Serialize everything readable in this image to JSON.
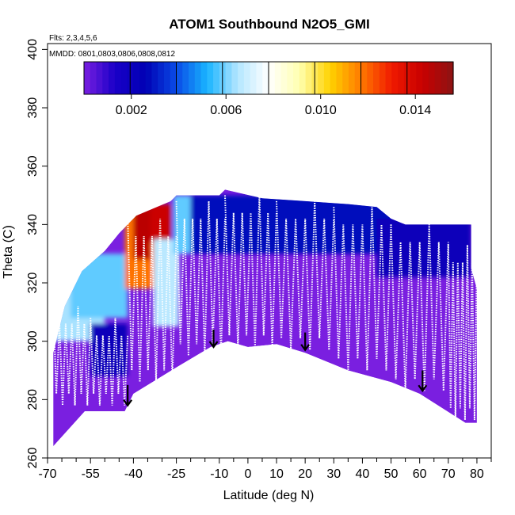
{
  "chart_data": {
    "type": "heatmap",
    "title": "ATOM1 Southbound N2O5_GMI",
    "annotations": {
      "flights": "Flts: 2,3,4,5,6",
      "dates": "MMDD: 0801,0803,0806,0808,0812"
    },
    "xlabel": "Latitude (deg N)",
    "ylabel": "Theta (C)",
    "xlim": [
      -70,
      85
    ],
    "ylim": [
      260,
      402
    ],
    "x_ticks": [
      -70,
      -55,
      -40,
      -25,
      -10,
      0,
      10,
      20,
      30,
      40,
      50,
      60,
      70,
      80
    ],
    "x_tick_labels": [
      "-70",
      "-55",
      "-40",
      "-25",
      "-10",
      "0",
      "10",
      "20",
      "30",
      "40",
      "50",
      "60",
      "70",
      "80"
    ],
    "x_minor_ticks": [
      -65,
      -60,
      -50,
      -45,
      -35,
      -30,
      -20,
      -15,
      -5,
      5,
      15,
      25,
      35,
      45,
      55,
      65,
      75,
      85
    ],
    "y_ticks": [
      260,
      280,
      300,
      320,
      340,
      360,
      380,
      400
    ],
    "y_tick_labels": [
      "260",
      "280",
      "300",
      "320",
      "340",
      "360",
      "380",
      "400"
    ],
    "colorbar": {
      "min": 0.0,
      "max": 0.0156,
      "ticks": [
        0.002,
        0.006,
        0.01,
        0.014
      ],
      "tick_labels": [
        "0.002",
        "0.006",
        "0.010",
        "0.014"
      ],
      "colors": [
        "#7a1fe0",
        "#1a00c8",
        "#0000b4",
        "#0a4be6",
        "#19b4ff",
        "#b4e6ff",
        "#ffffff",
        "#ffffb0",
        "#ffd200",
        "#ff7a00",
        "#f01a00",
        "#c80000",
        "#8c1414"
      ]
    },
    "grid": false,
    "background_value": 0.0,
    "floor_boundary": [
      [
        -68,
        264
      ],
      [
        -57,
        276
      ],
      [
        -43,
        276
      ],
      [
        -40,
        282
      ],
      [
        -25,
        291
      ],
      [
        -13,
        298
      ],
      [
        -7,
        300
      ],
      [
        0,
        298
      ],
      [
        10,
        299
      ],
      [
        20,
        296
      ],
      [
        35,
        290
      ],
      [
        50,
        286
      ],
      [
        60,
        282
      ],
      [
        76,
        272
      ],
      [
        80,
        272
      ]
    ],
    "top_boundary": [
      [
        -68,
        296
      ],
      [
        -64,
        312
      ],
      [
        -58,
        324
      ],
      [
        -50,
        331
      ],
      [
        -45,
        337
      ],
      [
        -39,
        343
      ],
      [
        -27,
        348
      ],
      [
        -25,
        350
      ],
      [
        -10,
        350
      ],
      [
        -8,
        352
      ],
      [
        5,
        349
      ],
      [
        20,
        348
      ],
      [
        35,
        347
      ],
      [
        45,
        346
      ],
      [
        50,
        342
      ],
      [
        55,
        340
      ],
      [
        78,
        340
      ],
      [
        78,
        325
      ],
      [
        80,
        318
      ],
      [
        80,
        288
      ]
    ],
    "concentration_regions": [
      {
        "lat_min": -68,
        "lat_max": -50,
        "theta_min": 300,
        "theta_max": 318,
        "value": 0.0064
      },
      {
        "lat_min": -62,
        "lat_max": -42,
        "theta_min": 308,
        "theta_max": 330,
        "value": 0.0058
      },
      {
        "lat_min": -55,
        "lat_max": -42,
        "theta_min": 288,
        "theta_max": 306,
        "value": 0.0022
      },
      {
        "lat_min": -43,
        "lat_max": -29,
        "theta_min": 318,
        "theta_max": 344,
        "value": 0.0118
      },
      {
        "lat_min": -40,
        "lat_max": -34,
        "theta_min": 328,
        "theta_max": 346,
        "value": 0.0146
      },
      {
        "lat_min": -34,
        "lat_max": -27,
        "theta_min": 334,
        "theta_max": 347,
        "value": 0.0142
      },
      {
        "lat_min": -33,
        "lat_max": -24,
        "theta_min": 305,
        "theta_max": 335,
        "value": 0.0066
      },
      {
        "lat_min": -26,
        "lat_max": -20,
        "theta_min": 330,
        "theta_max": 350,
        "value": 0.0058
      },
      {
        "lat_min": -20,
        "lat_max": 78,
        "theta_min": 330,
        "theta_max": 350,
        "value": 0.0028
      },
      {
        "lat_min": 45,
        "lat_max": 78,
        "theta_min": 322,
        "theta_max": 342,
        "value": 0.0022
      }
    ],
    "flight_tracks": [
      {
        "lat_start": -68,
        "lat_end": -55,
        "theta_bottom": 278,
        "theta_top": 312
      },
      {
        "lat_start": -55,
        "lat_end": -42,
        "theta_bottom": 278,
        "theta_top": 308
      },
      {
        "lat_start": -42,
        "lat_end": -25,
        "theta_bottom": 286,
        "theta_top": 342
      },
      {
        "lat_start": -25,
        "lat_end": -8,
        "theta_bottom": 295,
        "theta_top": 348
      },
      {
        "lat_start": -8,
        "lat_end": 10,
        "theta_bottom": 298,
        "theta_top": 350
      },
      {
        "lat_start": 10,
        "lat_end": 30,
        "theta_bottom": 297,
        "theta_top": 348
      },
      {
        "lat_start": 30,
        "lat_end": 50,
        "theta_bottom": 290,
        "theta_top": 346
      },
      {
        "lat_start": 50,
        "lat_end": 70,
        "theta_bottom": 283,
        "theta_top": 340
      },
      {
        "lat_start": 70,
        "lat_end": 80,
        "theta_bottom": 273,
        "theta_top": 333
      }
    ],
    "arrows": [
      {
        "lat": -42,
        "theta_tip": 278,
        "theta_tail": 285
      },
      {
        "lat": -12,
        "theta_tip": 298,
        "theta_tail": 304
      },
      {
        "lat": 20,
        "theta_tip": 297,
        "theta_tail": 303
      },
      {
        "lat": 61,
        "theta_tip": 283,
        "theta_tail": 290
      }
    ]
  }
}
